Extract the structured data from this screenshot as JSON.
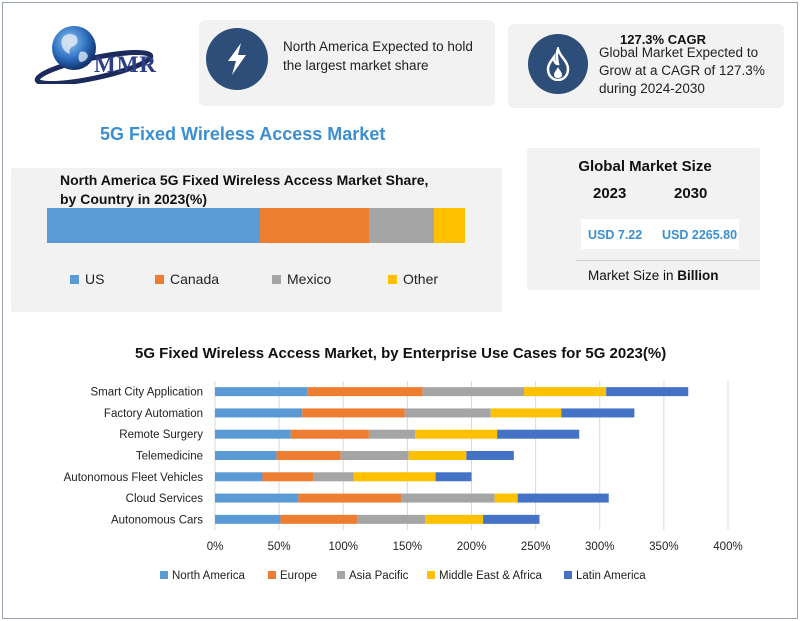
{
  "logo": {
    "text": "MMR"
  },
  "card1": {
    "text_line1": "North America Expected to hold",
    "text_line2": "the largest market share",
    "icon": "lightning-icon"
  },
  "card2": {
    "title": "127.3% CAGR",
    "line1": "Global Market Expected to",
    "line2": "Grow at a CAGR of 127.3%",
    "line3": "during 2024-2030",
    "icon": "flame-icon"
  },
  "main_title": "5G Fixed Wireless Access Market",
  "share_chart": {
    "title_line1": "North America 5G Fixed Wireless Access Market Share,",
    "title_line2": "by Country in 2023(%)",
    "segments": [
      {
        "name": "US",
        "value": 51,
        "color": "#5b9bd5"
      },
      {
        "name": "Canada",
        "value": 26,
        "color": "#ed7d31"
      },
      {
        "name": "Mexico",
        "value": 15.5,
        "color": "#a5a5a5"
      },
      {
        "name": "Other",
        "value": 7.5,
        "color": "#ffc000"
      }
    ]
  },
  "global_market": {
    "title": "Global Market Size",
    "year1": "2023",
    "year2": "2030",
    "value1": "USD 7.22",
    "value2": "USD 2265.80",
    "note_prefix": "Market Size in ",
    "note_bold": "Billion"
  },
  "chart_data": {
    "type": "bar",
    "orientation": "horizontal",
    "stacked": true,
    "title": "5G Fixed Wireless Access Market, by Enterprise Use Cases for 5G 2023(%)",
    "categories": [
      "Smart City Application",
      "Factory Automation",
      "Remote Surgery",
      "Telemedicine",
      "Autonomous Fleet Vehicles",
      "Cloud Services",
      "Autonomous Cars"
    ],
    "series": [
      {
        "name": "North America",
        "color": "#5b9bd5",
        "values": [
          72,
          68,
          59,
          48,
          37,
          65,
          51
        ]
      },
      {
        "name": "Europe",
        "color": "#ed7d31",
        "values": [
          90,
          80,
          61,
          50,
          40,
          80,
          60
        ]
      },
      {
        "name": "Asia Pacific",
        "color": "#a5a5a5",
        "values": [
          79,
          67,
          36,
          53,
          31,
          73,
          53
        ]
      },
      {
        "name": "Middle East & Africa",
        "color": "#ffc000",
        "values": [
          64,
          55,
          64,
          45,
          64,
          18,
          45
        ]
      },
      {
        "name": "Latin America",
        "color": "#4472c4",
        "values": [
          64,
          57,
          64,
          37,
          28,
          71,
          44
        ]
      }
    ],
    "xticks": [
      "0%",
      "50%",
      "100%",
      "150%",
      "200%",
      "250%",
      "300%",
      "350%",
      "400%"
    ],
    "xlim": [
      0,
      400
    ],
    "xlabel": "",
    "ylabel": "",
    "grid": true,
    "legend_position": "bottom"
  }
}
